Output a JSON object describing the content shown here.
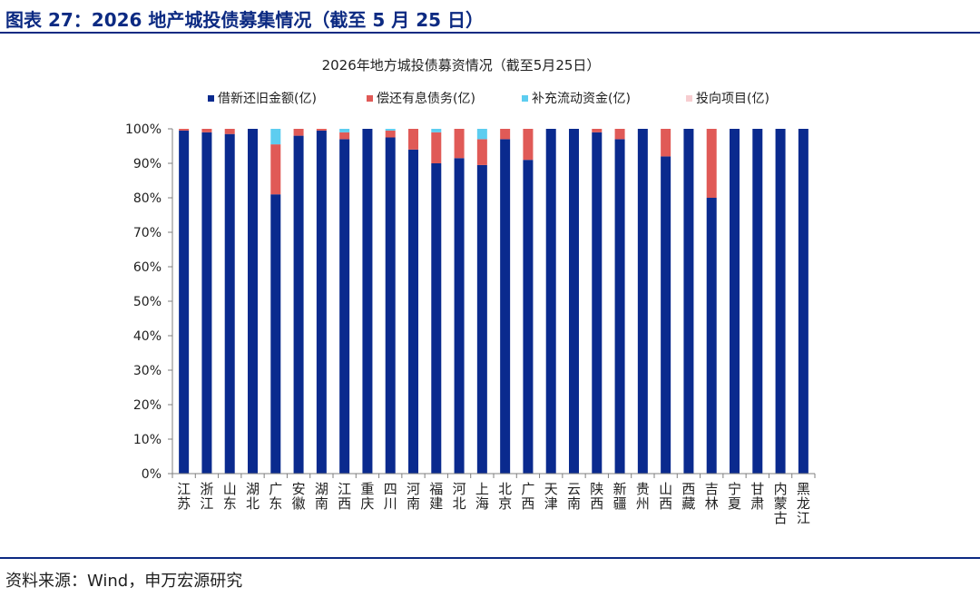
{
  "figure_title": "图表 27：2026 地产城投债募集情况（截至 5 月 25 日）",
  "source": "资料来源：Wind，申万宏源研究",
  "chart_data": {
    "type": "bar",
    "stacked": true,
    "title": "2026年地方城投债募资情况（截至5月25日）",
    "xlabel": "",
    "ylabel": "",
    "ylim": [
      0,
      100
    ],
    "yticks": [
      "0%",
      "10%",
      "20%",
      "30%",
      "40%",
      "50%",
      "60%",
      "70%",
      "80%",
      "90%",
      "100%"
    ],
    "legend_position": "top",
    "categories": [
      "江苏",
      "浙江",
      "山东",
      "湖北",
      "广东",
      "安徽",
      "湖南",
      "江西",
      "重庆",
      "四川",
      "河南",
      "福建",
      "河北",
      "上海",
      "北京",
      "广西",
      "天津",
      "云南",
      "陕西",
      "新疆",
      "贵州",
      "山西",
      "西藏",
      "吉林",
      "宁夏",
      "甘肃",
      "内蒙古",
      "黑龙江"
    ],
    "series": [
      {
        "name": "借新还旧金额(亿)",
        "color": "#0a2a8e",
        "values": [
          99.5,
          99,
          98.5,
          100,
          81,
          98,
          99.5,
          97,
          100,
          97.5,
          94,
          90,
          91.5,
          89.5,
          97,
          91,
          100,
          100,
          99,
          97,
          100,
          92,
          100,
          80,
          100,
          100,
          100,
          100
        ]
      },
      {
        "name": "偿还有息债务(亿)",
        "color": "#e05a57",
        "values": [
          0.5,
          1,
          1.5,
          0,
          14.5,
          2,
          0.5,
          2,
          0,
          2,
          6,
          9,
          8.5,
          7.5,
          3,
          9,
          0,
          0,
          1,
          3,
          0,
          8,
          0,
          20,
          0,
          0,
          0,
          0
        ]
      },
      {
        "name": "补充流动资金(亿)",
        "color": "#5dcdf0",
        "values": [
          0,
          0,
          0,
          0,
          4.5,
          0,
          0,
          1,
          0,
          0.5,
          0,
          1,
          0,
          3,
          0,
          0,
          0,
          0,
          0,
          0,
          0,
          0,
          0,
          0,
          0,
          0,
          0,
          0
        ]
      },
      {
        "name": "投向项目(亿)",
        "color": "#f7cdd0",
        "values": [
          0,
          0,
          0,
          0,
          0,
          0,
          0,
          0,
          0,
          0,
          0,
          0,
          0,
          0,
          0,
          0,
          0,
          0,
          0,
          0,
          0,
          0,
          0,
          0,
          0,
          0,
          0,
          0
        ]
      }
    ]
  }
}
